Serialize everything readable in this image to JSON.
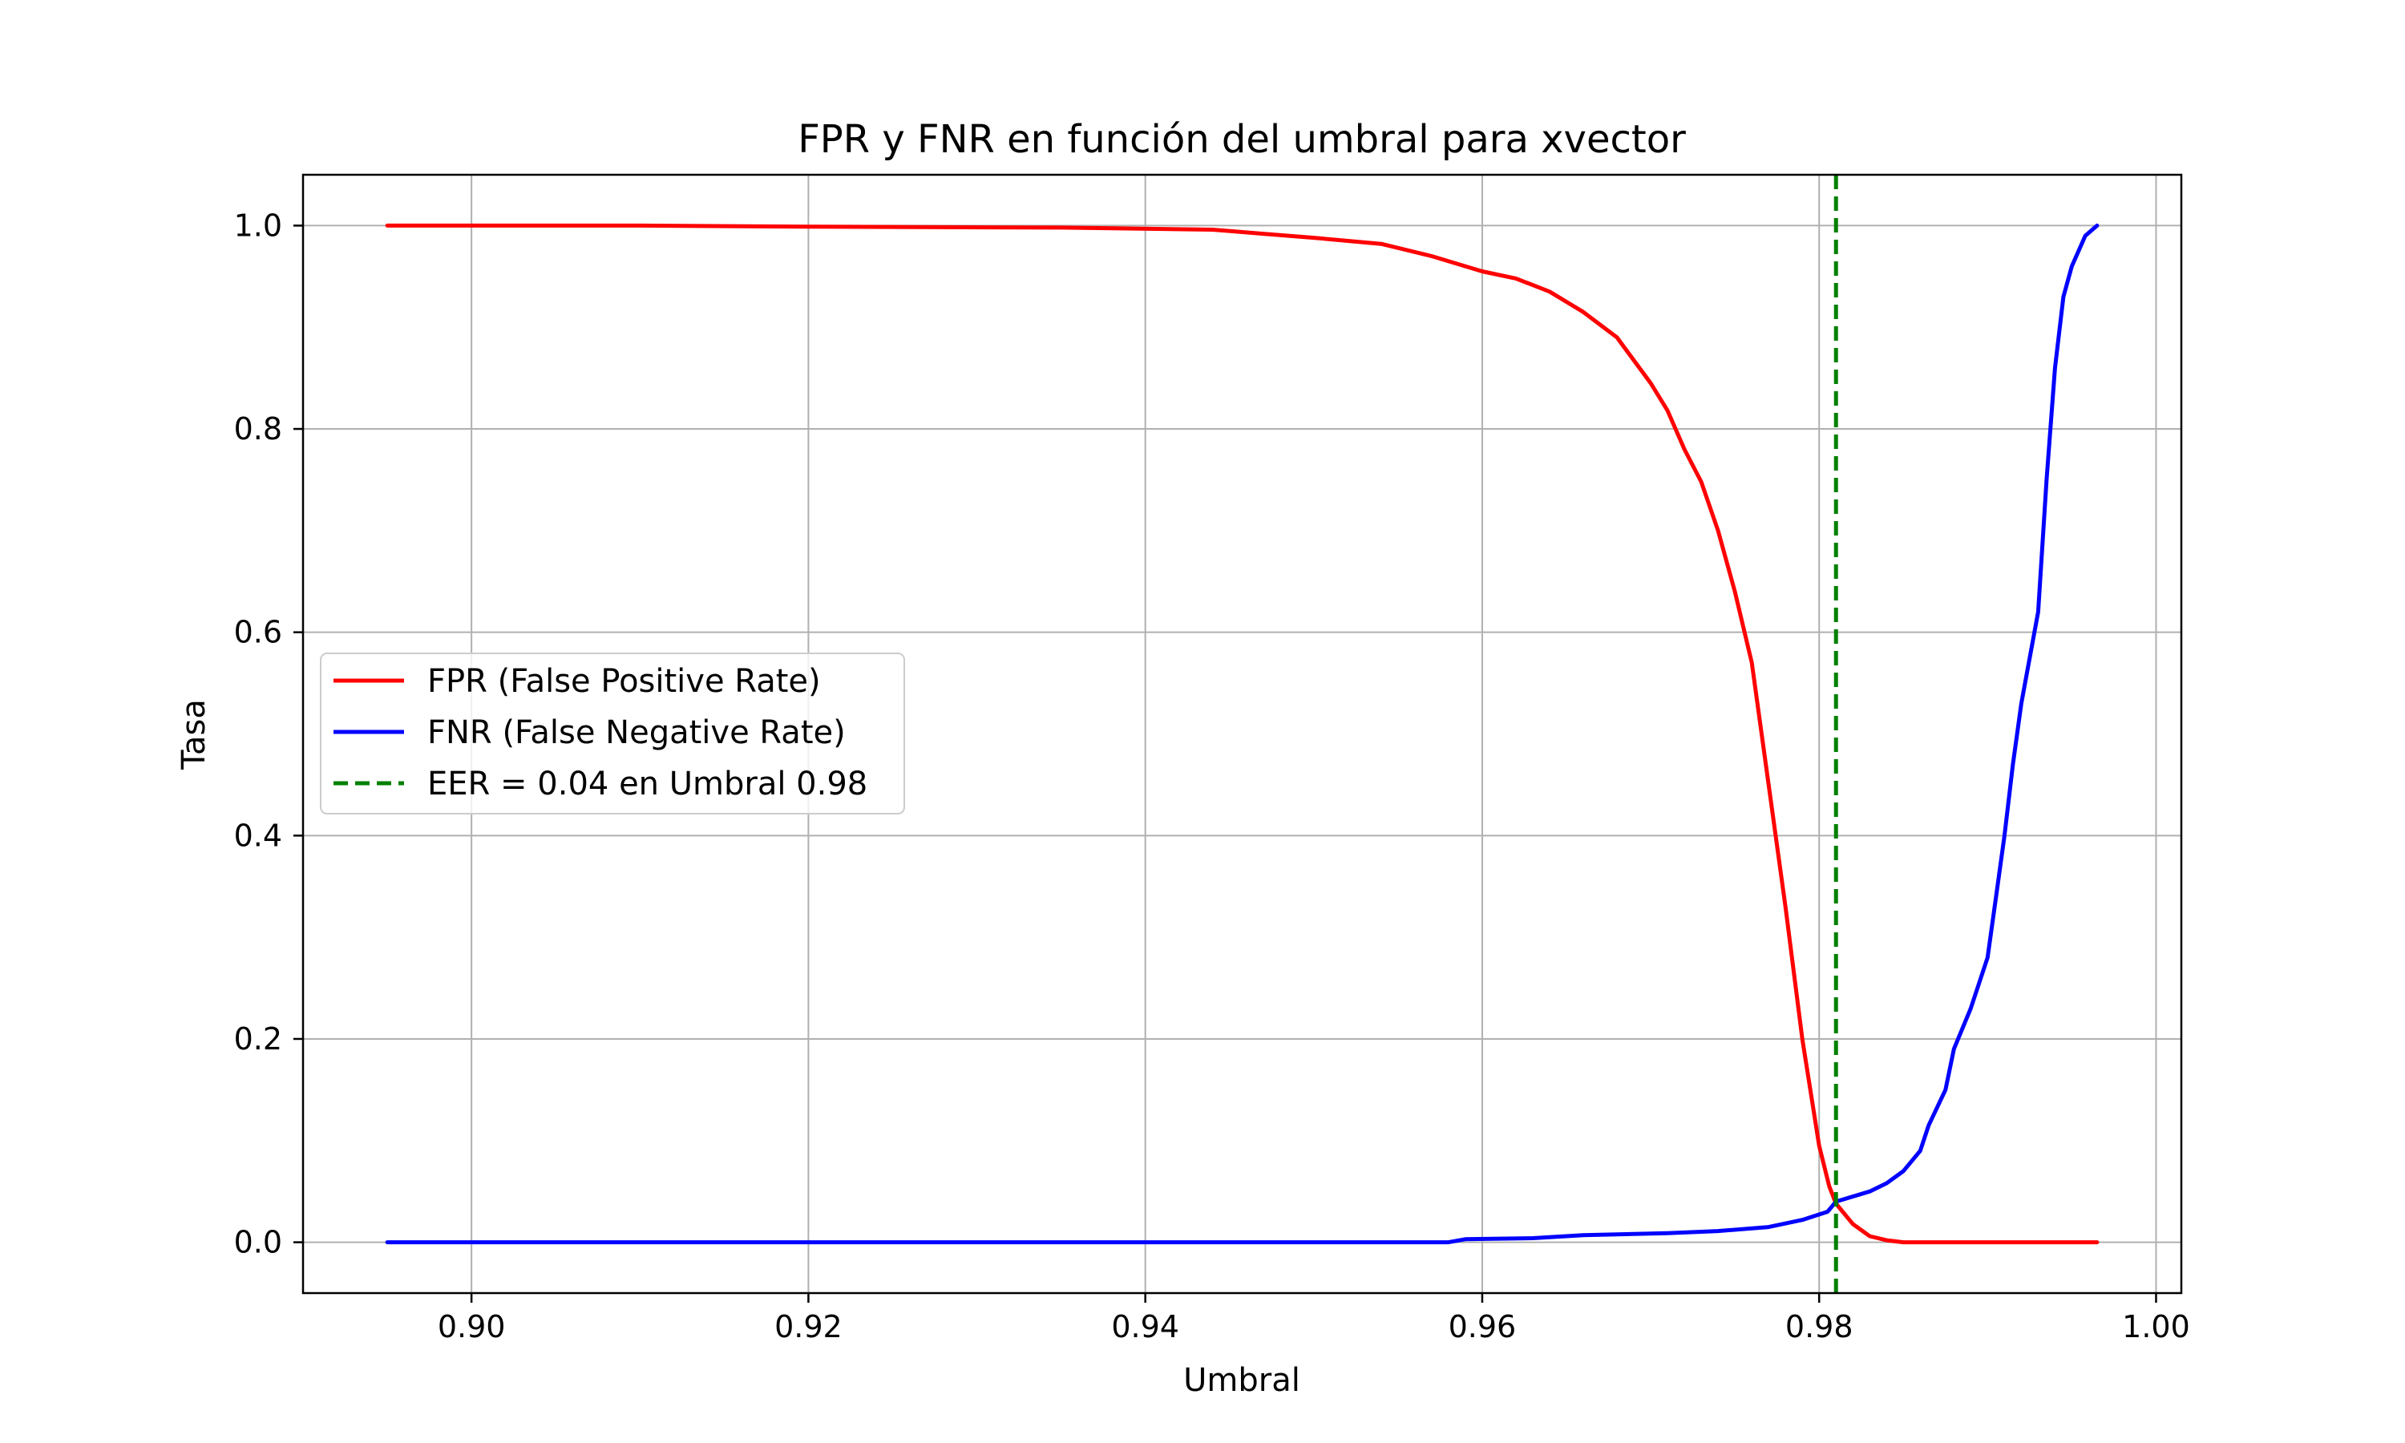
{
  "chart_data": {
    "type": "line",
    "title": "FPR y FNR en función del umbral para xvector",
    "xlabel": "Umbral",
    "ylabel": "Tasa",
    "xlim": [
      0.89,
      1.0015
    ],
    "ylim": [
      -0.05,
      1.05
    ],
    "xticks": [
      "0.90",
      "0.92",
      "0.94",
      "0.96",
      "0.98",
      "1.00"
    ],
    "yticks": [
      "0.0",
      "0.2",
      "0.4",
      "0.6",
      "0.8",
      "1.0"
    ],
    "grid": true,
    "legend_position": "center-left",
    "series": [
      {
        "name": "FPR (False Positive Rate)",
        "color": "#ff0000",
        "style": "solid",
        "points": [
          [
            0.895,
            1.0
          ],
          [
            0.91,
            1.0
          ],
          [
            0.92,
            0.999
          ],
          [
            0.935,
            0.998
          ],
          [
            0.944,
            0.996
          ],
          [
            0.947,
            0.992
          ],
          [
            0.95,
            0.988
          ],
          [
            0.954,
            0.982
          ],
          [
            0.957,
            0.97
          ],
          [
            0.96,
            0.955
          ],
          [
            0.962,
            0.948
          ],
          [
            0.964,
            0.935
          ],
          [
            0.966,
            0.915
          ],
          [
            0.968,
            0.89
          ],
          [
            0.97,
            0.845
          ],
          [
            0.971,
            0.818
          ],
          [
            0.972,
            0.78
          ],
          [
            0.973,
            0.748
          ],
          [
            0.974,
            0.7
          ],
          [
            0.975,
            0.64
          ],
          [
            0.976,
            0.57
          ],
          [
            0.977,
            0.45
          ],
          [
            0.978,
            0.33
          ],
          [
            0.979,
            0.2
          ],
          [
            0.98,
            0.095
          ],
          [
            0.9806,
            0.055
          ],
          [
            0.981,
            0.038
          ],
          [
            0.982,
            0.018
          ],
          [
            0.983,
            0.006
          ],
          [
            0.984,
            0.002
          ],
          [
            0.985,
            0.0
          ],
          [
            0.9965,
            0.0
          ]
        ]
      },
      {
        "name": "FNR (False Negative Rate)",
        "color": "#0000ff",
        "style": "solid",
        "points": [
          [
            0.895,
            0.0
          ],
          [
            0.958,
            0.0
          ],
          [
            0.959,
            0.003
          ],
          [
            0.963,
            0.004
          ],
          [
            0.966,
            0.007
          ],
          [
            0.971,
            0.009
          ],
          [
            0.974,
            0.011
          ],
          [
            0.977,
            0.015
          ],
          [
            0.979,
            0.022
          ],
          [
            0.9805,
            0.03
          ],
          [
            0.981,
            0.04
          ],
          [
            0.983,
            0.05
          ],
          [
            0.984,
            0.058
          ],
          [
            0.985,
            0.07
          ],
          [
            0.986,
            0.09
          ],
          [
            0.9865,
            0.115
          ],
          [
            0.9875,
            0.15
          ],
          [
            0.988,
            0.19
          ],
          [
            0.989,
            0.23
          ],
          [
            0.99,
            0.28
          ],
          [
            0.9905,
            0.34
          ],
          [
            0.991,
            0.4
          ],
          [
            0.9915,
            0.47
          ],
          [
            0.992,
            0.53
          ],
          [
            0.993,
            0.62
          ],
          [
            0.9935,
            0.75
          ],
          [
            0.994,
            0.86
          ],
          [
            0.9945,
            0.93
          ],
          [
            0.995,
            0.96
          ],
          [
            0.9958,
            0.99
          ],
          [
            0.9965,
            1.0
          ]
        ]
      },
      {
        "name": "EER = 0.04 en Umbral 0.98",
        "color": "#008000",
        "style": "dashed",
        "vline_x": 0.981
      }
    ]
  }
}
